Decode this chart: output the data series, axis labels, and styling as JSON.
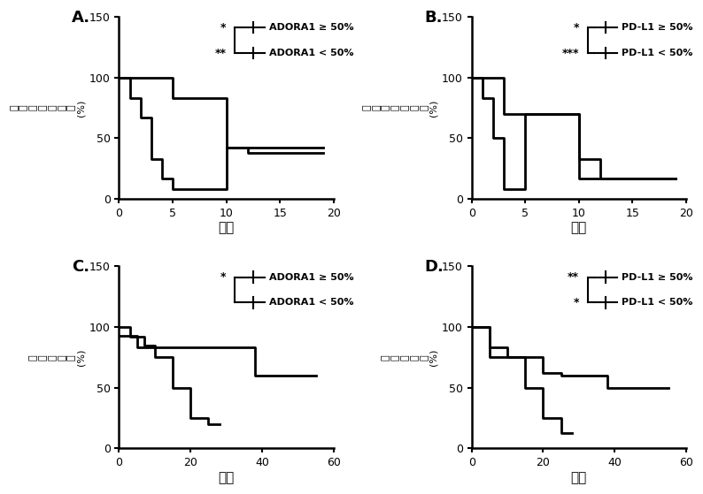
{
  "panels": [
    {
      "label": "A.",
      "xlabel": "月数",
      "ylabel_chars": [
        "无",
        "进",
        "展",
        "生",
        "存",
        "时",
        "间"
      ],
      "ylabel_suffix": "(%)",
      "xlim": [
        0,
        20
      ],
      "ylim": [
        0,
        150
      ],
      "yticks": [
        0,
        50,
        100,
        150
      ],
      "xticks": [
        0,
        5,
        10,
        15,
        20
      ],
      "legend_stars": [
        "*",
        "**"
      ],
      "legend_labels": [
        "ADORA1 ≥ 50%",
        "ADORA1 < 50%"
      ],
      "curves": [
        {
          "x": [
            0,
            1,
            1,
            2,
            2,
            3,
            3,
            4,
            4,
            5,
            5,
            10,
            10,
            19
          ],
          "y": [
            100,
            100,
            83,
            83,
            67,
            67,
            33,
            33,
            17,
            17,
            8,
            8,
            42,
            42
          ],
          "lw": 2.0
        },
        {
          "x": [
            0,
            5,
            5,
            10,
            10,
            12,
            12,
            19
          ],
          "y": [
            100,
            100,
            83,
            83,
            42,
            42,
            38,
            38
          ],
          "lw": 2.0
        }
      ]
    },
    {
      "label": "B.",
      "xlabel": "月数",
      "ylabel_chars": [
        "无",
        "进",
        "展",
        "生",
        "存",
        "时",
        "间"
      ],
      "ylabel_suffix": "(%)",
      "xlim": [
        0,
        20
      ],
      "ylim": [
        0,
        150
      ],
      "yticks": [
        0,
        50,
        100,
        150
      ],
      "xticks": [
        0,
        5,
        10,
        15,
        20
      ],
      "legend_stars": [
        "*",
        "***"
      ],
      "legend_labels": [
        "PD-L1 ≥ 50%",
        "PD-L1 < 50%"
      ],
      "curves": [
        {
          "x": [
            0,
            1,
            1,
            2,
            2,
            3,
            3,
            5,
            5,
            10,
            10,
            12,
            12,
            19
          ],
          "y": [
            100,
            100,
            83,
            83,
            50,
            50,
            8,
            8,
            70,
            70,
            33,
            33,
            17,
            17
          ],
          "lw": 2.0
        },
        {
          "x": [
            0,
            3,
            3,
            5,
            5,
            10,
            10,
            19
          ],
          "y": [
            100,
            100,
            70,
            70,
            70,
            70,
            17,
            17
          ],
          "lw": 2.0
        }
      ]
    },
    {
      "label": "C.",
      "xlabel": "月数",
      "ylabel_chars": [
        "总",
        "生",
        "存",
        "时",
        "间"
      ],
      "ylabel_suffix": "(%)",
      "xlim": [
        0,
        60
      ],
      "ylim": [
        0,
        150
      ],
      "yticks": [
        0,
        50,
        100,
        150
      ],
      "xticks": [
        0,
        20,
        40,
        60
      ],
      "legend_stars": [
        "*"
      ],
      "legend_labels": [
        "ADORA1 ≥ 50%",
        "ADORA1 < 50%"
      ],
      "curves": [
        {
          "x": [
            0,
            3,
            3,
            7,
            7,
            10,
            10,
            15,
            15,
            20,
            20,
            38,
            38,
            55
          ],
          "y": [
            100,
            100,
            92,
            92,
            85,
            85,
            83,
            83,
            83,
            83,
            83,
            83,
            60,
            60
          ],
          "lw": 2.0
        },
        {
          "x": [
            0,
            5,
            5,
            10,
            10,
            15,
            15,
            20,
            20,
            25,
            25,
            28,
            28
          ],
          "y": [
            93,
            93,
            83,
            83,
            75,
            75,
            50,
            50,
            25,
            25,
            20,
            20,
            20
          ],
          "lw": 2.0
        }
      ]
    },
    {
      "label": "D.",
      "xlabel": "月数",
      "ylabel_chars": [
        "总",
        "生",
        "存",
        "时",
        "间"
      ],
      "ylabel_suffix": "(%)",
      "xlim": [
        0,
        60
      ],
      "ylim": [
        0,
        150
      ],
      "yticks": [
        0,
        50,
        100,
        150
      ],
      "xticks": [
        0,
        20,
        40,
        60
      ],
      "legend_stars": [
        "**",
        "*"
      ],
      "legend_labels": [
        "PD-L1 ≥ 50%",
        "PD-L1 < 50%"
      ],
      "curves": [
        {
          "x": [
            0,
            5,
            5,
            10,
            10,
            20,
            20,
            25,
            25,
            38,
            38,
            55
          ],
          "y": [
            100,
            100,
            83,
            83,
            75,
            75,
            62,
            62,
            60,
            60,
            50,
            50
          ],
          "lw": 2.0
        },
        {
          "x": [
            0,
            5,
            5,
            10,
            10,
            15,
            15,
            20,
            20,
            25,
            25,
            28,
            28
          ],
          "y": [
            100,
            100,
            75,
            75,
            75,
            75,
            50,
            50,
            25,
            25,
            13,
            13,
            13
          ],
          "lw": 2.0
        }
      ]
    }
  ]
}
